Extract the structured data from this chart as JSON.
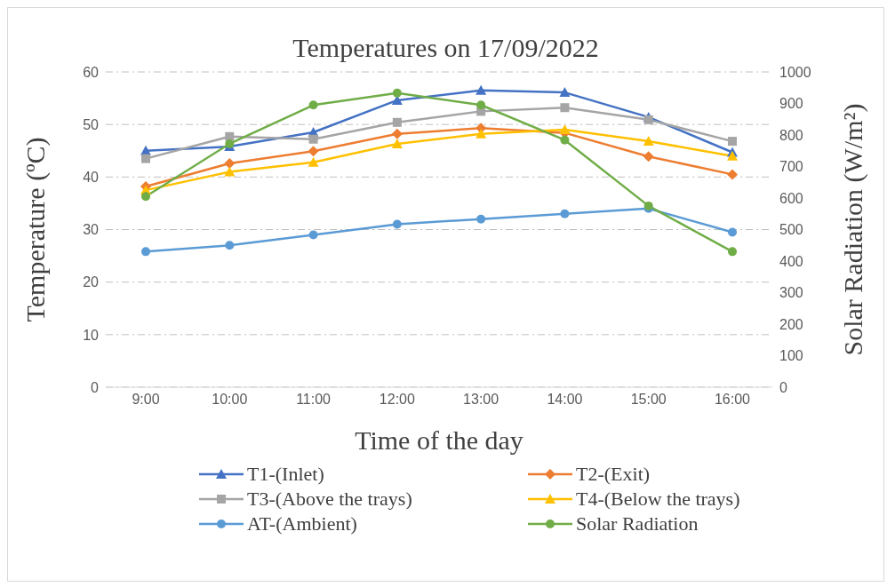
{
  "chart_data": {
    "type": "line",
    "title": "Temperatures on 17/09/2022",
    "xlabel": "Time of the day",
    "ylabel": "Temperature (ºC)",
    "y2label": "Solar Radiation (W/m²)",
    "categories": [
      "9:00",
      "10:00",
      "11:00",
      "12:00",
      "13:00",
      "14:00",
      "15:00",
      "16:00"
    ],
    "ylim": [
      0,
      60
    ],
    "yticks": [
      0,
      10,
      20,
      30,
      40,
      50,
      60
    ],
    "y2lim": [
      0,
      1000
    ],
    "y2ticks": [
      0,
      100,
      200,
      300,
      400,
      500,
      600,
      700,
      800,
      900,
      1000
    ],
    "grid": "y",
    "legend": "bottom",
    "line_style": "solid",
    "series": [
      {
        "name": "T1-(Inlet)",
        "color": "#4472c4",
        "marker": "triangle",
        "values": [
          45,
          45.8,
          48.5,
          54.6,
          56.5,
          56.1,
          51.4,
          44.7
        ]
      },
      {
        "name": "T2-(Exit)",
        "color": "#ed7d31",
        "marker": "diamond",
        "values": [
          38.2,
          42.6,
          44.9,
          48.2,
          49.3,
          48.4,
          43.9,
          40.5
        ]
      },
      {
        "name": "T3-(Above the trays)",
        "color": "#a5a5a5",
        "marker": "square",
        "values": [
          43.5,
          47.7,
          47.2,
          50.4,
          52.5,
          53.2,
          50.9,
          46.8
        ]
      },
      {
        "name": "T4-(Below the trays)",
        "color": "#ffc000",
        "marker": "triangle",
        "values": [
          37.5,
          41,
          42.8,
          46.3,
          48.2,
          49,
          46.8,
          44
        ]
      },
      {
        "name": "AT-(Ambient)",
        "color": "#5b9bd5",
        "marker": "circle",
        "values": [
          25.8,
          27,
          29,
          31,
          32,
          33,
          34,
          29.5
        ]
      },
      {
        "name": "Solar Radiation",
        "color": "#70ad47",
        "marker": "circle",
        "axis": "y2",
        "values": [
          605,
          772,
          895,
          933,
          895,
          784,
          575,
          430
        ]
      }
    ]
  }
}
